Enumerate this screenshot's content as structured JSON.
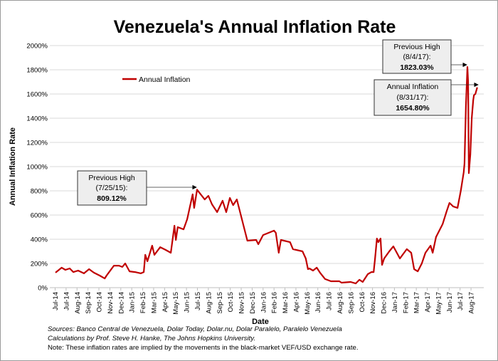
{
  "chart_data": {
    "type": "line",
    "title": "Venezuela's Annual Inflation Rate",
    "xlabel": "Date",
    "ylabel": "Annual Inflation Rate",
    "ylim": [
      0,
      2000
    ],
    "y_ticks": [
      "0%",
      "200%",
      "400%",
      "600%",
      "800%",
      "1000%",
      "1200%",
      "1400%",
      "1600%",
      "1800%",
      "2000%"
    ],
    "x_tick_labels": [
      "Jul-14",
      "Jul-14",
      "Aug-14",
      "Sep-14",
      "Oct-14",
      "Nov-14",
      "Dec-14",
      "Jan-15",
      "Feb-15",
      "Mar-15",
      "Apr-15",
      "May-15",
      "Jun-15",
      "Jul-15",
      "Aug-15",
      "Sep-15",
      "Oct-15",
      "Nov-15",
      "Dec-15",
      "Jan-16",
      "Feb-16",
      "Mar-16",
      "Apr-16",
      "May-16",
      "Jun-16",
      "Jul-16",
      "Aug-16",
      "Sep-16",
      "Oct-16",
      "Nov-16",
      "Dec-16",
      "Jan-17",
      "Feb-17",
      "Mar-17",
      "Apr-17",
      "May-17",
      "Jun-17",
      "Jul-17",
      "Aug-17"
    ],
    "grid": "horizontal",
    "legend": {
      "placement": "top-left",
      "entries": [
        "Annual Inflation"
      ]
    },
    "series": [
      {
        "name": "Annual Inflation",
        "color": "#c00000",
        "points": [
          [
            "2014-07-02",
            124
          ],
          [
            "2014-07-19",
            165
          ],
          [
            "2014-07-29",
            147
          ],
          [
            "2014-08-10",
            159
          ],
          [
            "2014-08-20",
            129
          ],
          [
            "2014-09-02",
            141
          ],
          [
            "2014-09-18",
            118
          ],
          [
            "2014-10-02",
            153
          ],
          [
            "2014-10-15",
            124
          ],
          [
            "2014-10-31",
            100
          ],
          [
            "2014-11-14",
            76
          ],
          [
            "2014-11-19",
            100
          ],
          [
            "2014-12-09",
            182
          ],
          [
            "2014-12-23",
            182
          ],
          [
            "2015-01-01",
            171
          ],
          [
            "2015-01-09",
            200
          ],
          [
            "2015-01-21",
            135
          ],
          [
            "2015-02-05",
            129
          ],
          [
            "2015-02-21",
            118
          ],
          [
            "2015-03-01",
            129
          ],
          [
            "2015-03-05",
            271
          ],
          [
            "2015-03-11",
            218
          ],
          [
            "2015-03-24",
            347
          ],
          [
            "2015-03-30",
            271
          ],
          [
            "2015-04-15",
            335
          ],
          [
            "2015-04-30",
            312
          ],
          [
            "2015-05-14",
            288
          ],
          [
            "2015-05-24",
            512
          ],
          [
            "2015-05-28",
            394
          ],
          [
            "2015-06-02",
            500
          ],
          [
            "2015-06-18",
            482
          ],
          [
            "2015-06-28",
            565
          ],
          [
            "2015-07-13",
            771
          ],
          [
            "2015-07-17",
            659
          ],
          [
            "2015-07-25",
            809.12
          ],
          [
            "2015-08-15",
            729
          ],
          [
            "2015-08-25",
            759
          ],
          [
            "2015-09-04",
            688
          ],
          [
            "2015-09-18",
            624
          ],
          [
            "2015-10-03",
            718
          ],
          [
            "2015-10-13",
            624
          ],
          [
            "2015-10-23",
            741
          ],
          [
            "2015-11-01",
            682
          ],
          [
            "2015-11-11",
            729
          ],
          [
            "2015-11-21",
            612
          ],
          [
            "2015-12-01",
            494
          ],
          [
            "2015-12-10",
            388
          ],
          [
            "2016-01-03",
            394
          ],
          [
            "2016-01-09",
            359
          ],
          [
            "2016-01-22",
            435
          ],
          [
            "2016-02-21",
            471
          ],
          [
            "2016-02-26",
            453
          ],
          [
            "2016-03-05",
            288
          ],
          [
            "2016-03-11",
            394
          ],
          [
            "2016-04-05",
            376
          ],
          [
            "2016-04-13",
            318
          ],
          [
            "2016-05-09",
            300
          ],
          [
            "2016-05-18",
            241
          ],
          [
            "2016-05-24",
            153
          ],
          [
            "2016-05-28",
            159
          ],
          [
            "2016-06-07",
            141
          ],
          [
            "2016-06-17",
            165
          ],
          [
            "2016-06-26",
            124
          ],
          [
            "2016-07-10",
            71
          ],
          [
            "2016-07-26",
            53
          ],
          [
            "2016-08-18",
            53
          ],
          [
            "2016-08-24",
            41
          ],
          [
            "2016-09-18",
            47
          ],
          [
            "2016-10-02",
            35
          ],
          [
            "2016-10-12",
            65
          ],
          [
            "2016-10-21",
            47
          ],
          [
            "2016-11-04",
            112
          ],
          [
            "2016-11-14",
            129
          ],
          [
            "2016-11-20",
            129
          ],
          [
            "2016-11-24",
            241
          ],
          [
            "2016-11-29",
            406
          ],
          [
            "2016-12-03",
            376
          ],
          [
            "2016-12-09",
            406
          ],
          [
            "2016-12-13",
            188
          ],
          [
            "2016-12-19",
            241
          ],
          [
            "2017-01-02",
            300
          ],
          [
            "2017-01-13",
            341
          ],
          [
            "2017-01-31",
            241
          ],
          [
            "2017-02-19",
            318
          ],
          [
            "2017-03-03",
            288
          ],
          [
            "2017-03-11",
            153
          ],
          [
            "2017-03-21",
            135
          ],
          [
            "2017-04-01",
            200
          ],
          [
            "2017-04-11",
            288
          ],
          [
            "2017-04-25",
            347
          ],
          [
            "2017-05-01",
            288
          ],
          [
            "2017-05-10",
            418
          ],
          [
            "2017-05-28",
            524
          ],
          [
            "2017-06-08",
            629
          ],
          [
            "2017-06-16",
            700
          ],
          [
            "2017-06-26",
            671
          ],
          [
            "2017-07-08",
            659
          ],
          [
            "2017-07-17",
            800
          ],
          [
            "2017-07-25",
            953
          ],
          [
            "2017-07-27",
            1024
          ],
          [
            "2017-07-31",
            1500
          ],
          [
            "2017-08-04",
            1823.03
          ],
          [
            "2017-08-06",
            1700
          ],
          [
            "2017-08-08",
            946
          ],
          [
            "2017-08-12",
            1100
          ],
          [
            "2017-08-16",
            1400
          ],
          [
            "2017-08-20",
            1550
          ],
          [
            "2017-08-22",
            1590
          ],
          [
            "2017-08-26",
            1600
          ],
          [
            "2017-08-31",
            1654.8
          ]
        ]
      }
    ],
    "annotations": [
      {
        "lines": [
          "Previous High",
          "(7/25/15):",
          "809.12%"
        ],
        "date": "2015-07-25",
        "value": 809.12
      },
      {
        "lines": [
          "Previous High",
          "(8/4/17):",
          "1823.03%"
        ],
        "date": "2017-08-04",
        "value": 1823.03
      },
      {
        "lines": [
          "Annual Inflation",
          "(8/31/17):",
          "1654.80%"
        ],
        "date": "2017-08-31",
        "value": 1654.8
      }
    ]
  },
  "footnotes": {
    "sources": "Sources: Banco Central de Venezuela, Dolar Today, Dolar.nu, Dolar Paralelo, Paralelo Venezuela",
    "calculations": "Calculations by Prof. Steve H. Hanke, The Johns Hopkins University.",
    "note": "Note: These inflation rates are implied by the movements in the black-market VEF/USD exchange rate."
  }
}
